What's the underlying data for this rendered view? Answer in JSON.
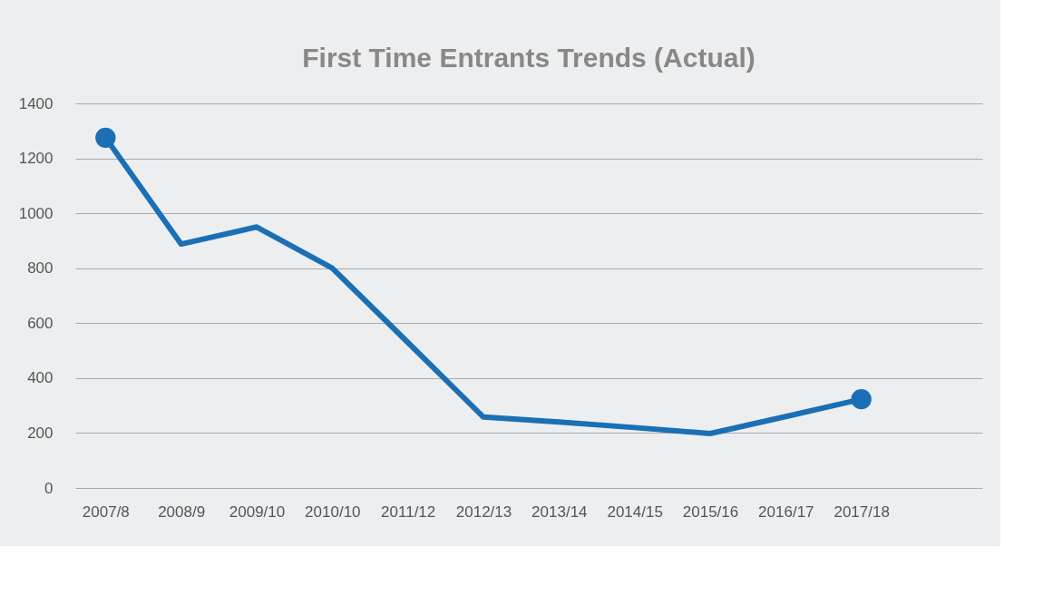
{
  "chart_data": {
    "type": "line",
    "title": "First Time Entrants Trends (Actual)",
    "categories": [
      "2007/8",
      "2008/9",
      "2009/10",
      "2010/10",
      "2011/12",
      "2012/13",
      "2013/14",
      "2014/15",
      "2015/16",
      "2016/17",
      "2017/18"
    ],
    "series": [
      {
        "color": "#1a6fb5",
        "values": [
          1275,
          888,
          950,
          800,
          530,
          258,
          240,
          220,
          198,
          260,
          323
        ],
        "marker": "none"
      },
      {
        "type": "scatter",
        "color": "#1a6fb5",
        "x": [
          "2007/8",
          "2017/18"
        ],
        "values": [
          1275,
          323
        ],
        "marker": "circle"
      }
    ],
    "ylim": [
      0,
      1400
    ],
    "yticks": [
      0,
      200,
      400,
      600,
      800,
      1000,
      1200,
      1400
    ],
    "grid": "y",
    "line_style": "solid"
  }
}
